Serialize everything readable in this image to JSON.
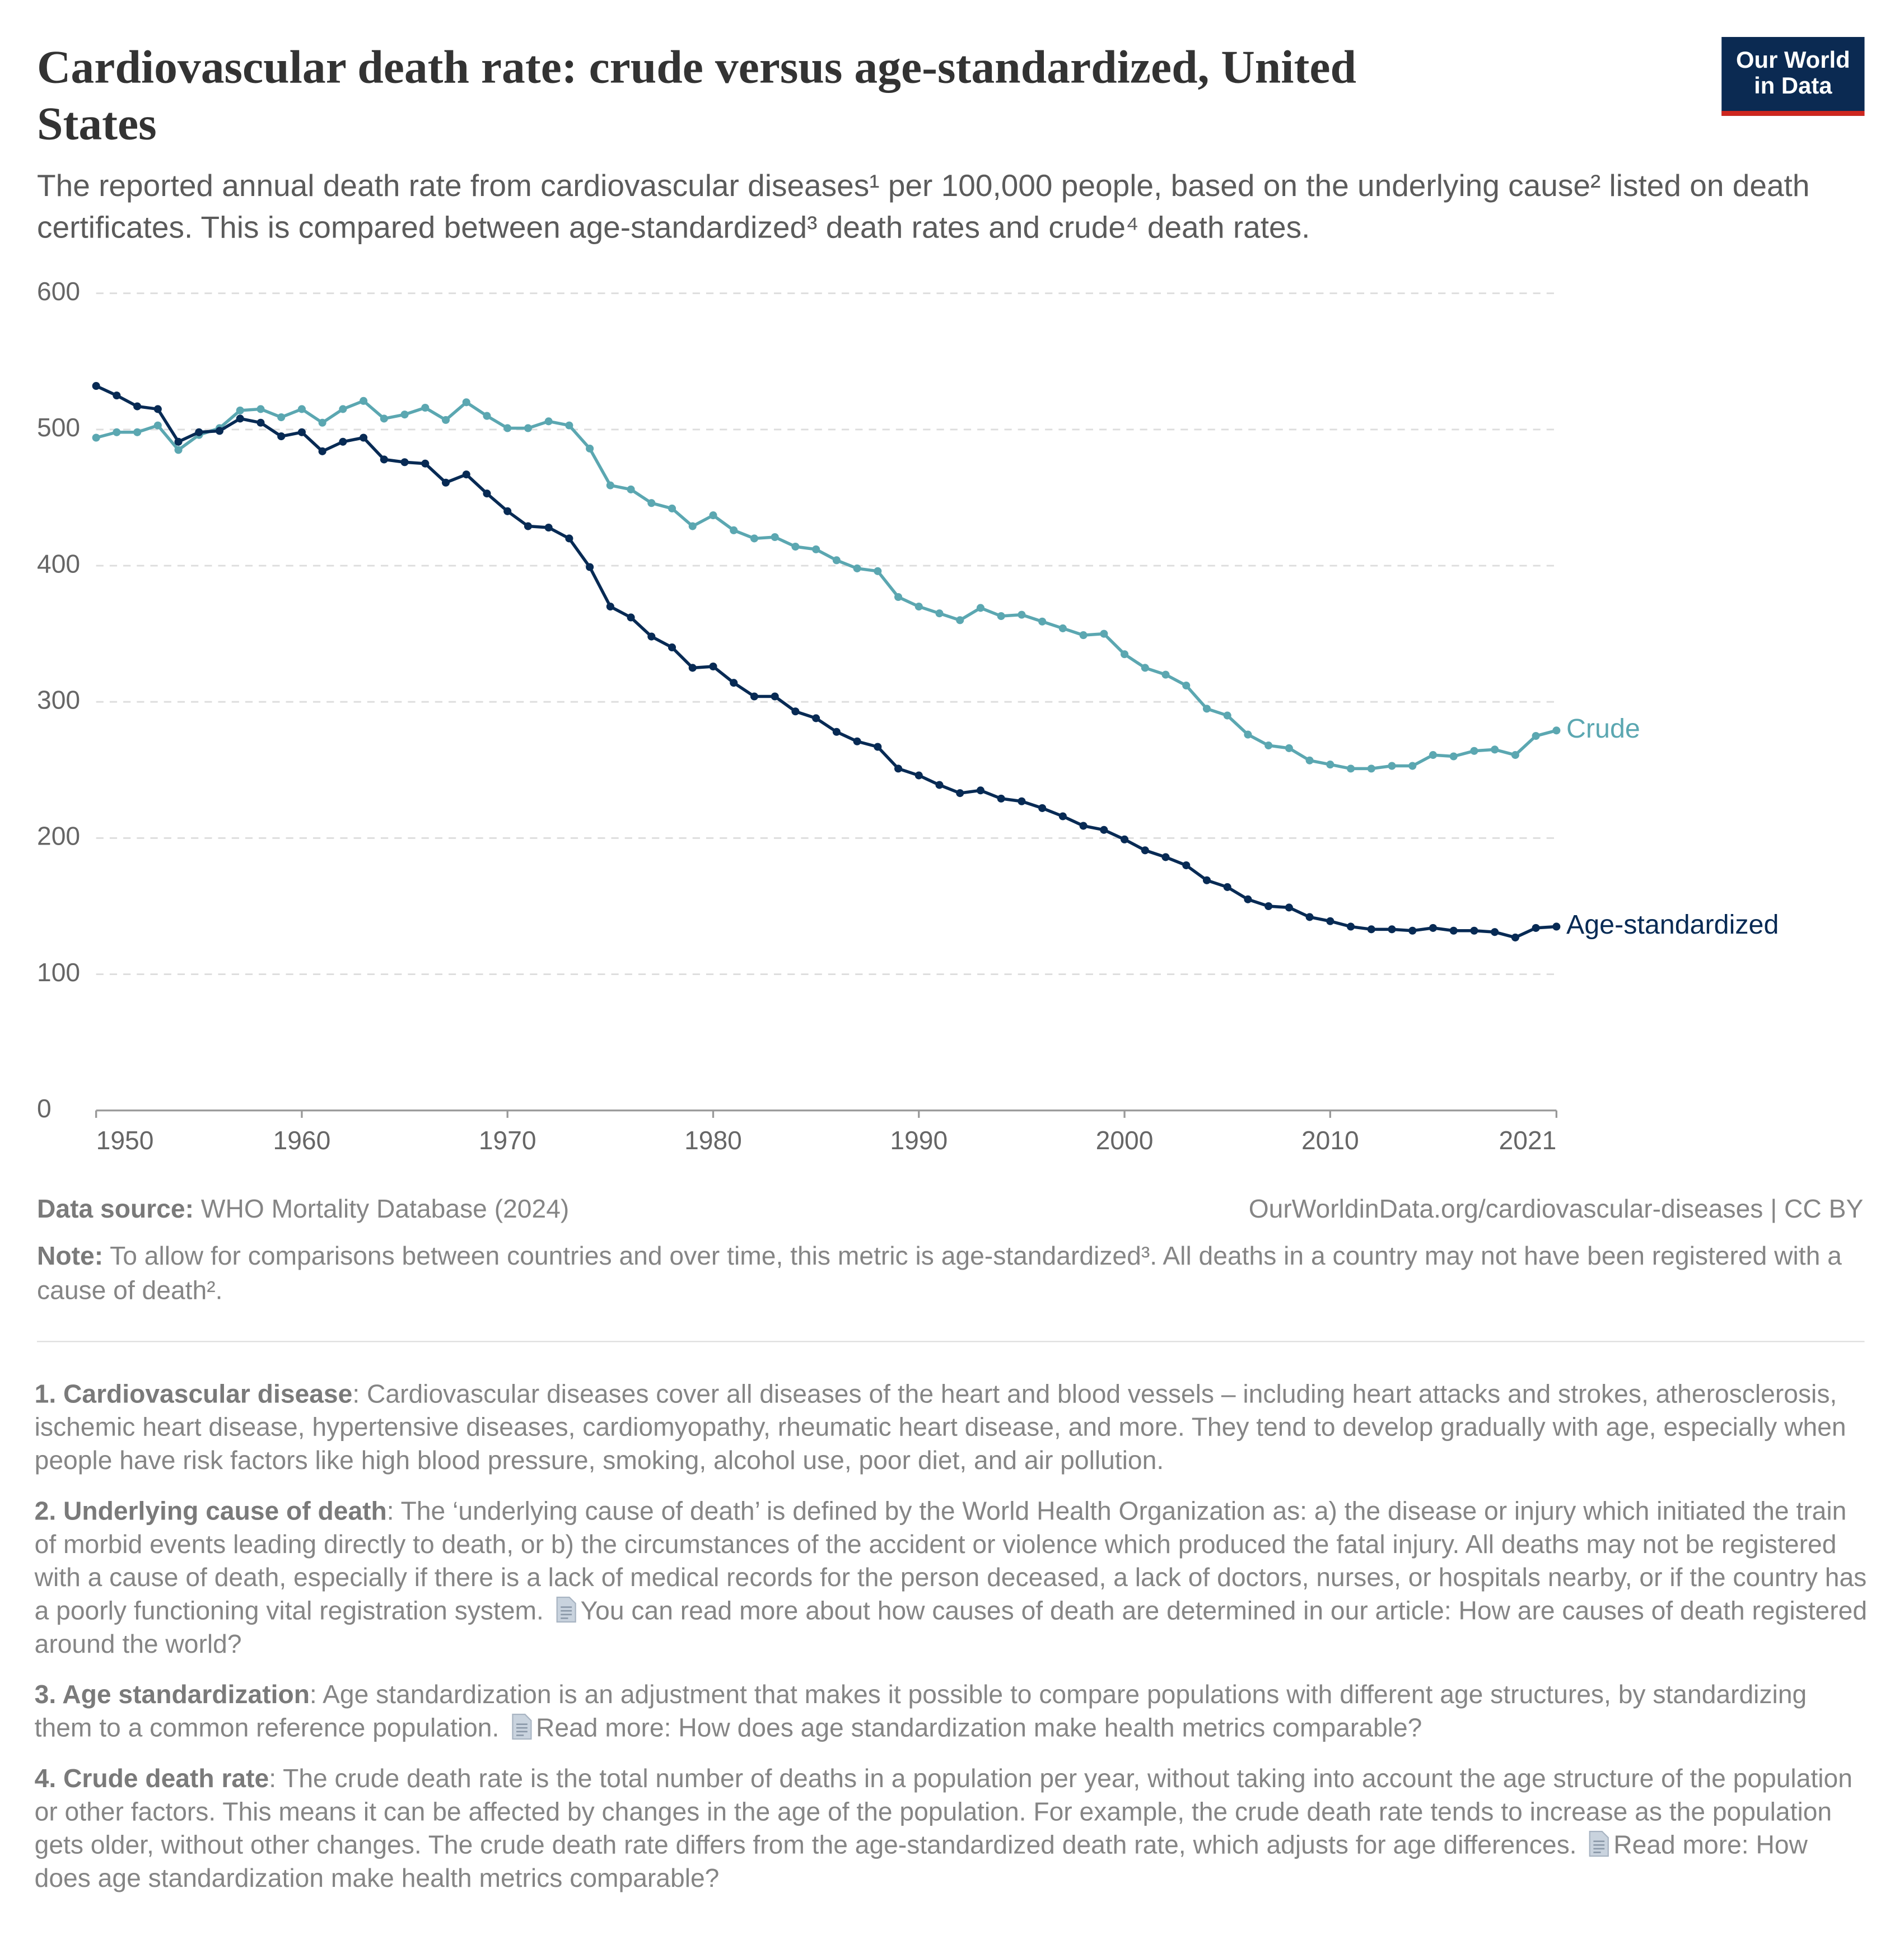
{
  "header": {
    "title": "Cardiovascular death rate: crude versus age-standardized, United States",
    "subtitle": "The reported annual death rate from cardiovascular diseases¹ per 100,000 people, based on the underlying cause² listed on death certificates. This is compared between age-standardized³ death rates and crude⁴ death rates.",
    "logo": [
      "Our World",
      "in Data"
    ]
  },
  "chart_data": {
    "type": "line",
    "x": [
      1950,
      1951,
      1952,
      1953,
      1954,
      1955,
      1956,
      1957,
      1958,
      1959,
      1960,
      1961,
      1962,
      1963,
      1964,
      1965,
      1966,
      1967,
      1968,
      1969,
      1970,
      1971,
      1972,
      1973,
      1974,
      1975,
      1976,
      1977,
      1978,
      1979,
      1980,
      1981,
      1982,
      1983,
      1984,
      1985,
      1986,
      1987,
      1988,
      1989,
      1990,
      1991,
      1992,
      1993,
      1994,
      1995,
      1996,
      1997,
      1998,
      1999,
      2000,
      2001,
      2002,
      2003,
      2004,
      2005,
      2006,
      2007,
      2008,
      2009,
      2010,
      2011,
      2012,
      2013,
      2014,
      2015,
      2016,
      2017,
      2018,
      2019,
      2020,
      2021
    ],
    "series": [
      {
        "name": "Crude",
        "color": "#5ba7b1",
        "values": [
          494,
          498,
          498,
          503,
          485,
          496,
          501,
          514,
          515,
          509,
          515,
          505,
          515,
          521,
          508,
          511,
          516,
          507,
          520,
          510,
          501,
          501,
          506,
          503,
          486,
          459,
          456,
          446,
          442,
          429,
          437,
          426,
          420,
          421,
          414,
          412,
          404,
          398,
          396,
          377,
          370,
          365,
          360,
          369,
          363,
          364,
          359,
          354,
          349,
          350,
          335,
          325,
          320,
          312,
          295,
          290,
          276,
          268,
          266,
          257,
          254,
          251,
          251,
          253,
          253,
          261,
          260,
          264,
          265,
          261,
          275,
          279
        ]
      },
      {
        "name": "Age-standardized",
        "color": "#072a54",
        "values": [
          532,
          525,
          517,
          515,
          491,
          498,
          499,
          508,
          505,
          495,
          498,
          484,
          491,
          494,
          478,
          476,
          475,
          461,
          467,
          453,
          440,
          429,
          428,
          420,
          399,
          370,
          362,
          348,
          340,
          325,
          326,
          314,
          304,
          304,
          293,
          288,
          278,
          271,
          267,
          251,
          246,
          239,
          233,
          235,
          229,
          227,
          222,
          216,
          209,
          206,
          199,
          191,
          186,
          180,
          169,
          164,
          155,
          150,
          149,
          142,
          139,
          135,
          133,
          133,
          132,
          134,
          132,
          132,
          131,
          127,
          134,
          135
        ]
      }
    ],
    "xlim": [
      1950,
      2021
    ],
    "xticks": [
      1950,
      1960,
      1970,
      1980,
      1990,
      2000,
      2010,
      2021
    ],
    "ylim": [
      0,
      600
    ],
    "yticks": [
      0,
      100,
      200,
      300,
      400,
      500,
      600
    ],
    "grid": true
  },
  "footer": {
    "source_label": "Data source:",
    "source": "WHO Mortality Database (2024)",
    "url": "OurWorldinData.org/cardiovascular-diseases | CC BY",
    "note_label": "Note:",
    "note": "To allow for comparisons between countries and over time, this metric is age-standardized³. All deaths in a country may not have been registered with a cause of death².",
    "notes": [
      {
        "term": "1. Cardiovascular disease",
        "text": [
          ": Cardiovascular diseases cover all diseases of the heart and blood vessels – including heart attacks and strokes, atherosclerosis, ischemic heart disease, hypertensive diseases, cardiomyopathy, rheumatic heart disease, and more. They tend to develop gradually with age, especially when people have risk factors like high blood pressure, smoking, alcohol use, poor diet, and air pollution."
        ]
      },
      {
        "term": "2. Underlying cause of death",
        "text": [
          ": The ‘underlying cause of death’ is defined by the World Health Organization as: a) the disease or injury which initiated the train of morbid events leading directly to death, or b) the circumstances of the accident or violence which produced the fatal injury. All deaths may not be registered with a cause of death, especially if there is a lack of medical records for the person deceased, a lack of doctors, nurses, or hospitals nearby, or if the country has a poorly functioning vital registration system.",
          "You can read more about how causes of death are determined in our article: How are causes of death registered around the world?"
        ]
      },
      {
        "term": "3. Age standardization",
        "text": [
          ": Age standardization is an adjustment that makes it possible to compare populations with different age structures, by standardizing them to a common reference population.",
          "Read more: How does age standardization make health metrics comparable?"
        ]
      },
      {
        "term": "4. Crude death rate",
        "text": [
          ": The crude death rate is the total number of deaths in a population per year, without taking into account the age structure of the population or other factors. This means it can be affected by changes in the age of the population. For example, the crude death rate tends to increase as the population gets older, without other changes. The crude death rate differs from the age-standardized death rate, which adjusts for age differences.",
          "Read more: How does age standardization make health metrics comparable?"
        ]
      }
    ]
  }
}
